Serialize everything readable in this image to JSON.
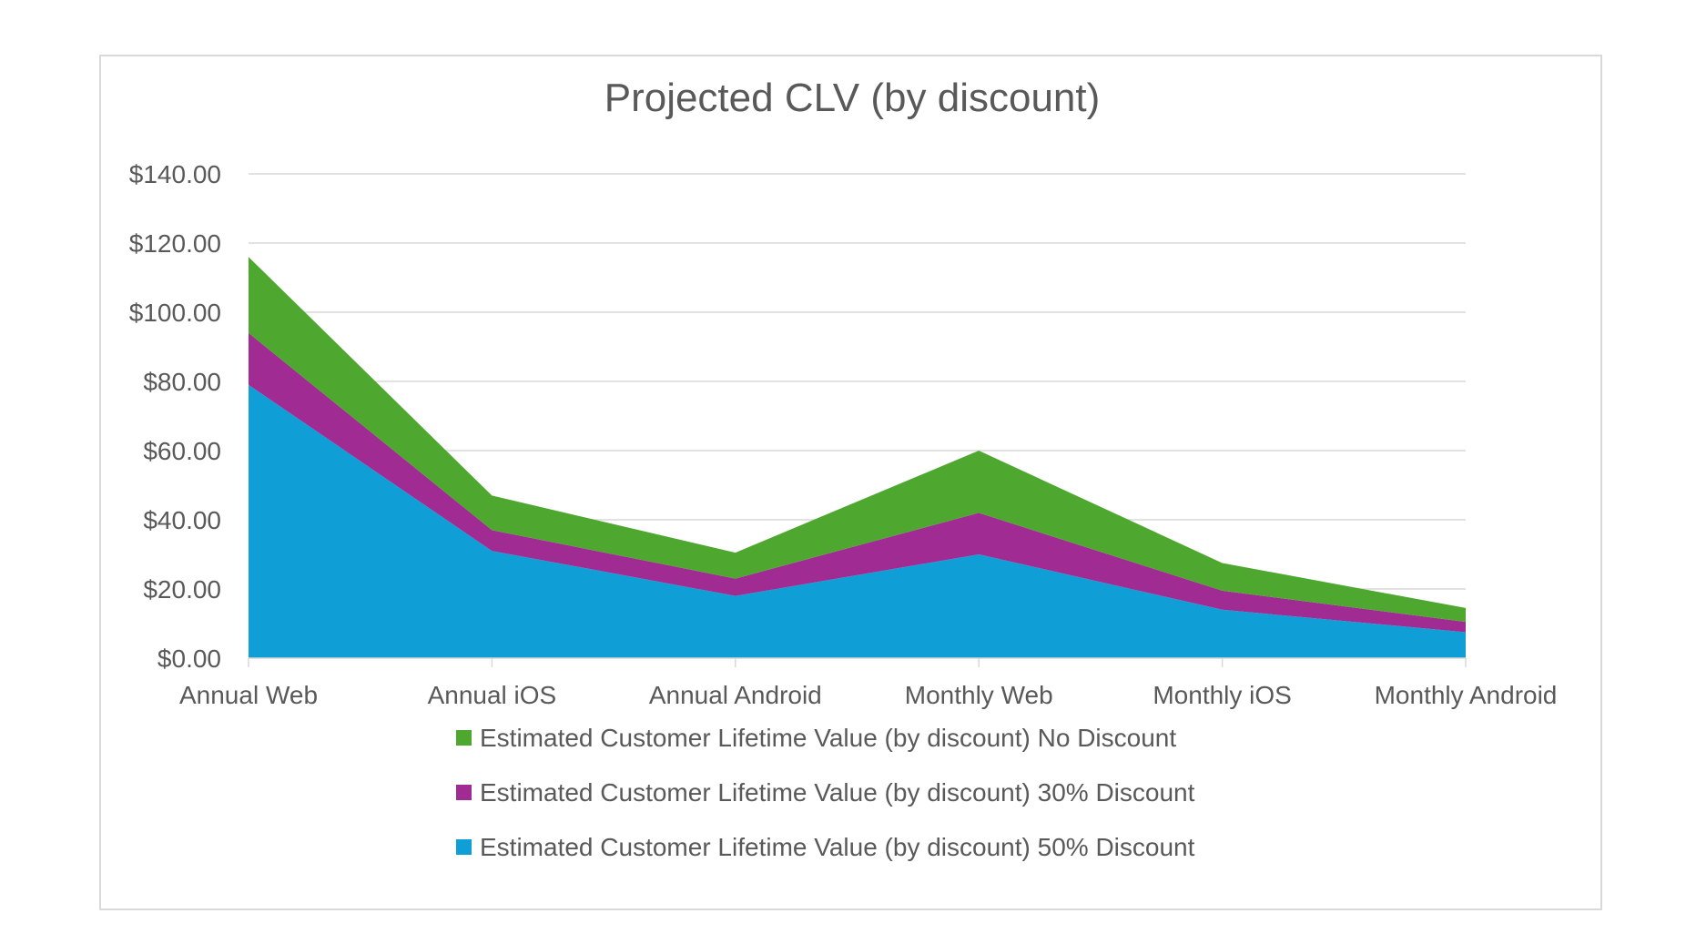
{
  "chart_data": {
    "type": "area",
    "stacked": true,
    "title": "Projected CLV (by discount)",
    "categories": [
      "Annual Web",
      "Annual iOS",
      "Annual Android",
      "Monthly Web",
      "Monthly iOS",
      "Monthly Android"
    ],
    "y_ticks": [
      "$0.00",
      "$20.00",
      "$40.00",
      "$60.00",
      "$80.00",
      "$100.00",
      "$120.00",
      "$140.00"
    ],
    "ylim": [
      0,
      140
    ],
    "y_step": 20,
    "legend_position": "bottom",
    "series": [
      {
        "name": "Estimated Customer Lifetime Value (by discount) No Discount",
        "color": "#4ea72e",
        "values": [
          22,
          10,
          7.5,
          18,
          8,
          4
        ]
      },
      {
        "name": "Estimated Customer Lifetime Value (by discount) 30% Discount",
        "color": "#a02b93",
        "values": [
          15,
          6,
          5,
          12,
          5.5,
          3
        ]
      },
      {
        "name": "Estimated Customer Lifetime Value (by discount) 50% Discount",
        "color": "#0f9ed5",
        "values": [
          79,
          31,
          18,
          30,
          14,
          7.5
        ]
      }
    ]
  }
}
